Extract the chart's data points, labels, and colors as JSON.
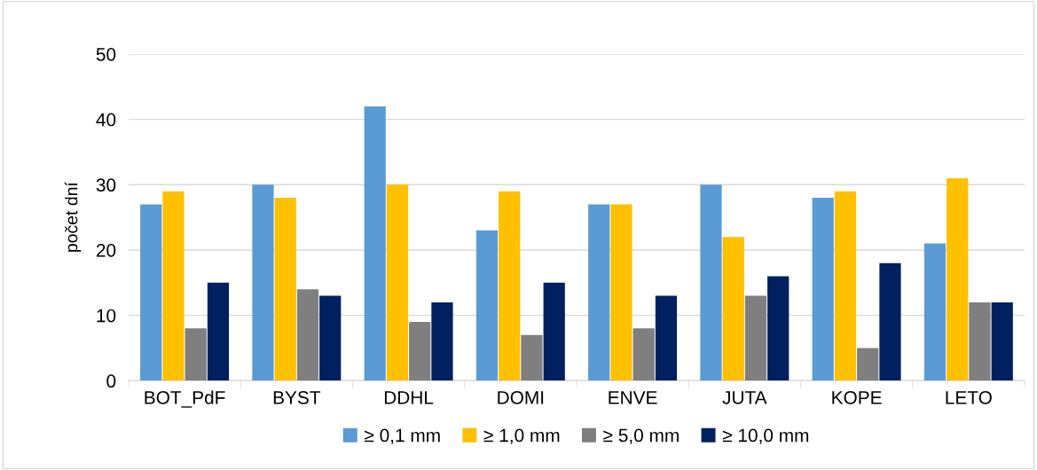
{
  "chart_data": {
    "type": "bar",
    "ylabel": "počet dní",
    "categories": [
      "BOT_PdF",
      "BYST",
      "DDHL",
      "DOMI",
      "ENVE",
      "JUTA",
      "KOPE",
      "LETO"
    ],
    "series": [
      {
        "name": "≥ 0,1 mm",
        "color": "#5b9bd5",
        "values": [
          27,
          30,
          42,
          23,
          27,
          30,
          28,
          21
        ]
      },
      {
        "name": "≥ 1,0 mm",
        "color": "#ffc000",
        "values": [
          29,
          28,
          30,
          29,
          27,
          22,
          29,
          31
        ]
      },
      {
        "name": "≥ 5,0 mm",
        "color": "#7f7f7f",
        "values": [
          8,
          14,
          9,
          7,
          8,
          13,
          5,
          12
        ]
      },
      {
        "name": "≥ 10,0 mm",
        "color": "#002060",
        "values": [
          15,
          13,
          12,
          15,
          13,
          16,
          18,
          12
        ]
      }
    ],
    "ylim": [
      0,
      50
    ],
    "yticks": [
      0,
      10,
      20,
      30,
      40,
      50
    ],
    "grid": "y",
    "legend": "bottom"
  }
}
